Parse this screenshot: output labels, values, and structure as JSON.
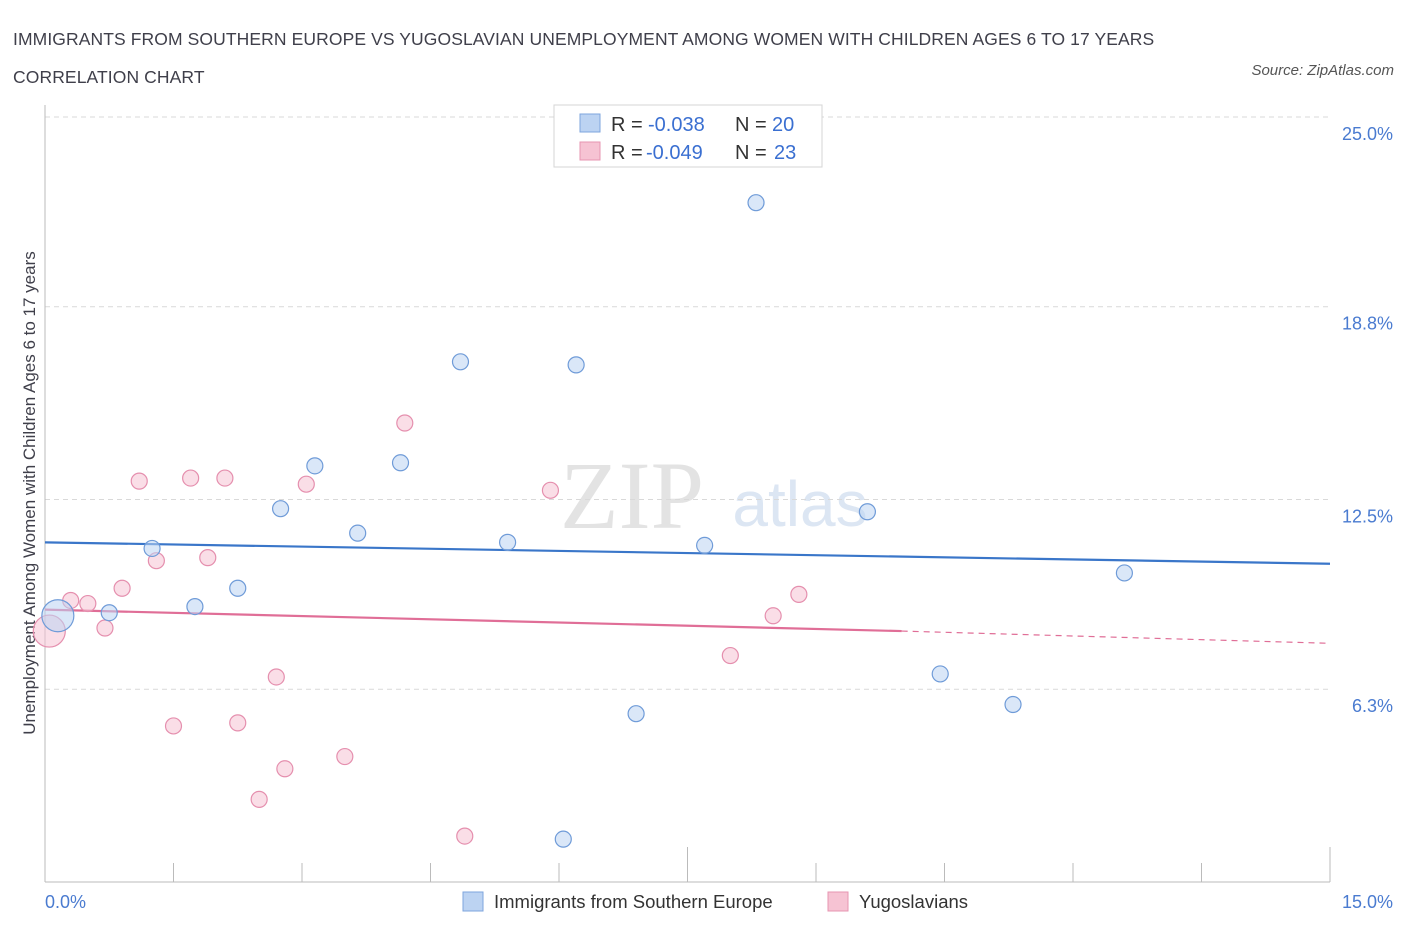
{
  "title": "IMMIGRANTS FROM SOUTHERN EUROPE VS YUGOSLAVIAN UNEMPLOYMENT AMONG WOMEN WITH CHILDREN AGES 6 TO 17 YEARS CORRELATION CHART",
  "source": "Source: ZipAtlas.com",
  "watermark": {
    "zip": "ZIP",
    "atlas": "atlas"
  },
  "colors": {
    "blue": "#3a76c9",
    "pink": "#e06e97",
    "blue_fill": "#bcd3f2",
    "pink_fill": "#f6c3d3",
    "tick_text": "#4a7bd0"
  },
  "legend": {
    "r_label": "R =",
    "n_label": "N =",
    "series1": {
      "r": "-0.038",
      "n": "20"
    },
    "series2": {
      "r": "-0.049",
      "n": "23"
    }
  },
  "chart_data": {
    "type": "scatter",
    "title": "IMMIGRANTS FROM SOUTHERN EUROPE VS YUGOSLAVIAN UNEMPLOYMENT AMONG WOMEN WITH CHILDREN AGES 6 TO 17 YEARS CORRELATION CHART",
    "xlabel": "",
    "ylabel": "Unemployment Among Women with Children Ages 6 to 17 years",
    "xlim": [
      0,
      15
    ],
    "ylim": [
      0,
      25
    ],
    "x_tick_labels": [
      "0.0%",
      "15.0%"
    ],
    "y_tick_labels": [
      "25.0%",
      "18.8%",
      "12.5%",
      "6.3%"
    ],
    "y_ticks": [
      25.0,
      18.8,
      12.5,
      6.3
    ],
    "grid": true,
    "legend_position": "top-center",
    "series": [
      {
        "name": "Immigrants from Southern Europe",
        "r": -0.038,
        "n": 20,
        "trend": {
          "x0": 0,
          "y0": 11.1,
          "x1": 15,
          "y1": 10.4
        },
        "points": [
          {
            "x": 0.15,
            "y": 8.7,
            "big": true
          },
          {
            "x": 0.75,
            "y": 8.8
          },
          {
            "x": 1.25,
            "y": 10.9
          },
          {
            "x": 1.75,
            "y": 9.0
          },
          {
            "x": 2.25,
            "y": 9.6
          },
          {
            "x": 2.75,
            "y": 12.2
          },
          {
            "x": 3.15,
            "y": 13.6
          },
          {
            "x": 3.65,
            "y": 11.4
          },
          {
            "x": 4.15,
            "y": 13.7
          },
          {
            "x": 4.85,
            "y": 17.0
          },
          {
            "x": 5.4,
            "y": 11.1
          },
          {
            "x": 6.2,
            "y": 16.9
          },
          {
            "x": 6.05,
            "y": 1.4
          },
          {
            "x": 6.9,
            "y": 5.5
          },
          {
            "x": 7.7,
            "y": 11.0
          },
          {
            "x": 8.3,
            "y": 22.2
          },
          {
            "x": 9.6,
            "y": 12.1
          },
          {
            "x": 10.45,
            "y": 6.8
          },
          {
            "x": 11.3,
            "y": 5.8
          },
          {
            "x": 12.6,
            "y": 10.1
          }
        ]
      },
      {
        "name": "Yugoslavians",
        "r": -0.049,
        "n": 23,
        "trend": {
          "x0": 0,
          "y0": 8.9,
          "x1": 10.0,
          "y1": 8.2,
          "dash_x1": 15,
          "dash_y1": 7.8
        },
        "points": [
          {
            "x": 0.05,
            "y": 8.2,
            "big": true
          },
          {
            "x": 0.3,
            "y": 9.2
          },
          {
            "x": 0.5,
            "y": 9.1
          },
          {
            "x": 0.7,
            "y": 8.3
          },
          {
            "x": 0.9,
            "y": 9.6
          },
          {
            "x": 1.1,
            "y": 13.1
          },
          {
            "x": 1.3,
            "y": 10.5
          },
          {
            "x": 1.5,
            "y": 5.1
          },
          {
            "x": 1.7,
            "y": 13.2
          },
          {
            "x": 1.9,
            "y": 10.6
          },
          {
            "x": 2.1,
            "y": 13.2
          },
          {
            "x": 2.25,
            "y": 5.2
          },
          {
            "x": 2.5,
            "y": 2.7
          },
          {
            "x": 2.7,
            "y": 6.7
          },
          {
            "x": 2.8,
            "y": 3.7
          },
          {
            "x": 3.05,
            "y": 13.0
          },
          {
            "x": 3.5,
            "y": 4.1
          },
          {
            "x": 4.2,
            "y": 15.0
          },
          {
            "x": 4.9,
            "y": 1.5
          },
          {
            "x": 5.9,
            "y": 12.8
          },
          {
            "x": 8.0,
            "y": 7.4
          },
          {
            "x": 8.5,
            "y": 8.7
          },
          {
            "x": 8.8,
            "y": 9.4
          }
        ]
      }
    ]
  },
  "bottom_legend": {
    "series1": "Immigrants from Southern Europe",
    "series2": "Yugoslavians"
  }
}
